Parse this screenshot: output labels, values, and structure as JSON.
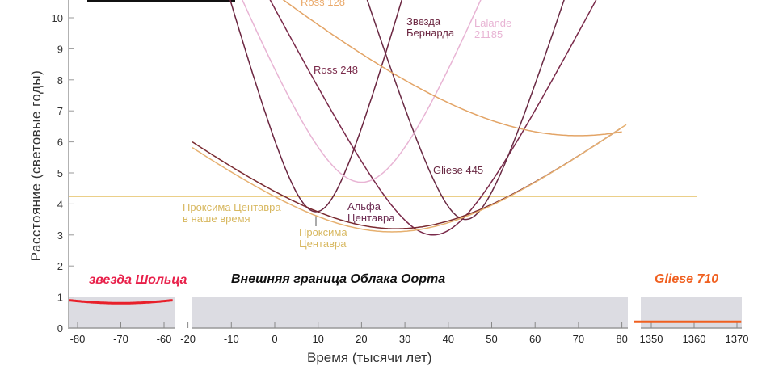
{
  "chart_data": {
    "type": "line",
    "xlabel": "Время (тысячи лет)",
    "ylabel": "Расстояние (световые годы)",
    "ylim": [
      0,
      10.6
    ],
    "yticks": [
      0,
      1,
      2,
      3,
      4,
      5,
      6,
      7,
      8,
      9,
      10
    ],
    "panels": [
      {
        "xlim": [
          -82,
          -58
        ],
        "xticks": [
          -80,
          -70,
          -60
        ]
      },
      {
        "xlim": [
          -20,
          82
        ],
        "xticks": [
          -20,
          -10,
          0,
          10,
          20,
          30,
          40,
          50,
          60,
          70,
          80
        ]
      },
      {
        "xlim": [
          1346,
          1371
        ],
        "xticks": [
          1350,
          1360,
          1370
        ]
      }
    ],
    "oort_label": "Внешняя граница Облака Оорта",
    "oort_boundary_ly": 1,
    "proxima_today": {
      "label_line1": "Проксима Центавра",
      "label_line2": "в наше время",
      "value": 4.24,
      "color": "#e8c878"
    },
    "series": [
      {
        "name": "Звезда Бернарда",
        "label_lines": [
          "Звезда",
          "Бернарда"
        ],
        "panel": 1,
        "min_distance": 3.75,
        "t_min": 9.5,
        "speed": 0.5,
        "t_range": [
          -20,
          40
        ],
        "color": "#6b2540",
        "label_color": "#6b2540"
      },
      {
        "name": "Ross 248",
        "label_lines": [
          "Ross 248"
        ],
        "panel": 1,
        "min_distance": 3.0,
        "t_min": 36.5,
        "speed": 0.27,
        "t_range": [
          -5,
          80
        ],
        "color": "#7a2a4a",
        "label_color": "#7a2a4a"
      },
      {
        "name": "Gliese 445",
        "label_lines": [
          "Gliese 445"
        ],
        "panel": 1,
        "min_distance": 3.5,
        "t_min": 44,
        "speed": 0.44,
        "t_range": [
          18,
          75
        ],
        "color": "#6a2a44",
        "label_color": "#6a2a44"
      },
      {
        "name": "Lalande 21185",
        "label_lines": [
          "Lalande",
          "21185"
        ],
        "panel": 1,
        "min_distance": 4.7,
        "t_min": 20,
        "speed": 0.345,
        "t_range": [
          -12,
          55
        ],
        "color": "#e8b4d4",
        "label_color": "#e8b4d4"
      },
      {
        "name": "Ross 128",
        "label_lines": [
          "Ross 128"
        ],
        "panel": 1,
        "min_distance": 6.2,
        "t_min": 70,
        "speed": 0.126,
        "t_range": [
          -5,
          80
        ],
        "color": "#e3a466",
        "label_color": "#eaa868"
      },
      {
        "name": "Альфа Центавра",
        "label_lines": [
          "Альфа",
          "Центавра"
        ],
        "panel": 1,
        "min_distance": 3.2,
        "t_min": 28,
        "speed": 0.108,
        "t_range": [
          -19,
          80
        ],
        "color": "#7a2a30",
        "label_color": "#6b2a50"
      },
      {
        "name": "Проксима Центавра",
        "label_lines": [
          "Проксима",
          "Центавра"
        ],
        "panel": 1,
        "min_distance": 3.1,
        "t_min": 27,
        "speed": 0.107,
        "t_range": [
          -19,
          81
        ],
        "color": "#e6b070",
        "label_color": "#d8b860"
      },
      {
        "name": "звезда Шольца",
        "label_lines": [
          "звезда Шольца"
        ],
        "panel": 0,
        "min_distance": 0.8,
        "t_min": -70,
        "speed": 0.034,
        "t_range": [
          -82,
          -58
        ],
        "color": "#e8202a",
        "label_color": "#e8204a"
      },
      {
        "name": "Gliese 710",
        "label_lines": [
          "Gliese 710"
        ],
        "panel": 2,
        "min_distance": 0.2,
        "t_min": 1355,
        "speed": 0.002,
        "t_range": [
          1346,
          1371
        ],
        "color": "#f06020",
        "label_color": "#f06020"
      }
    ]
  }
}
